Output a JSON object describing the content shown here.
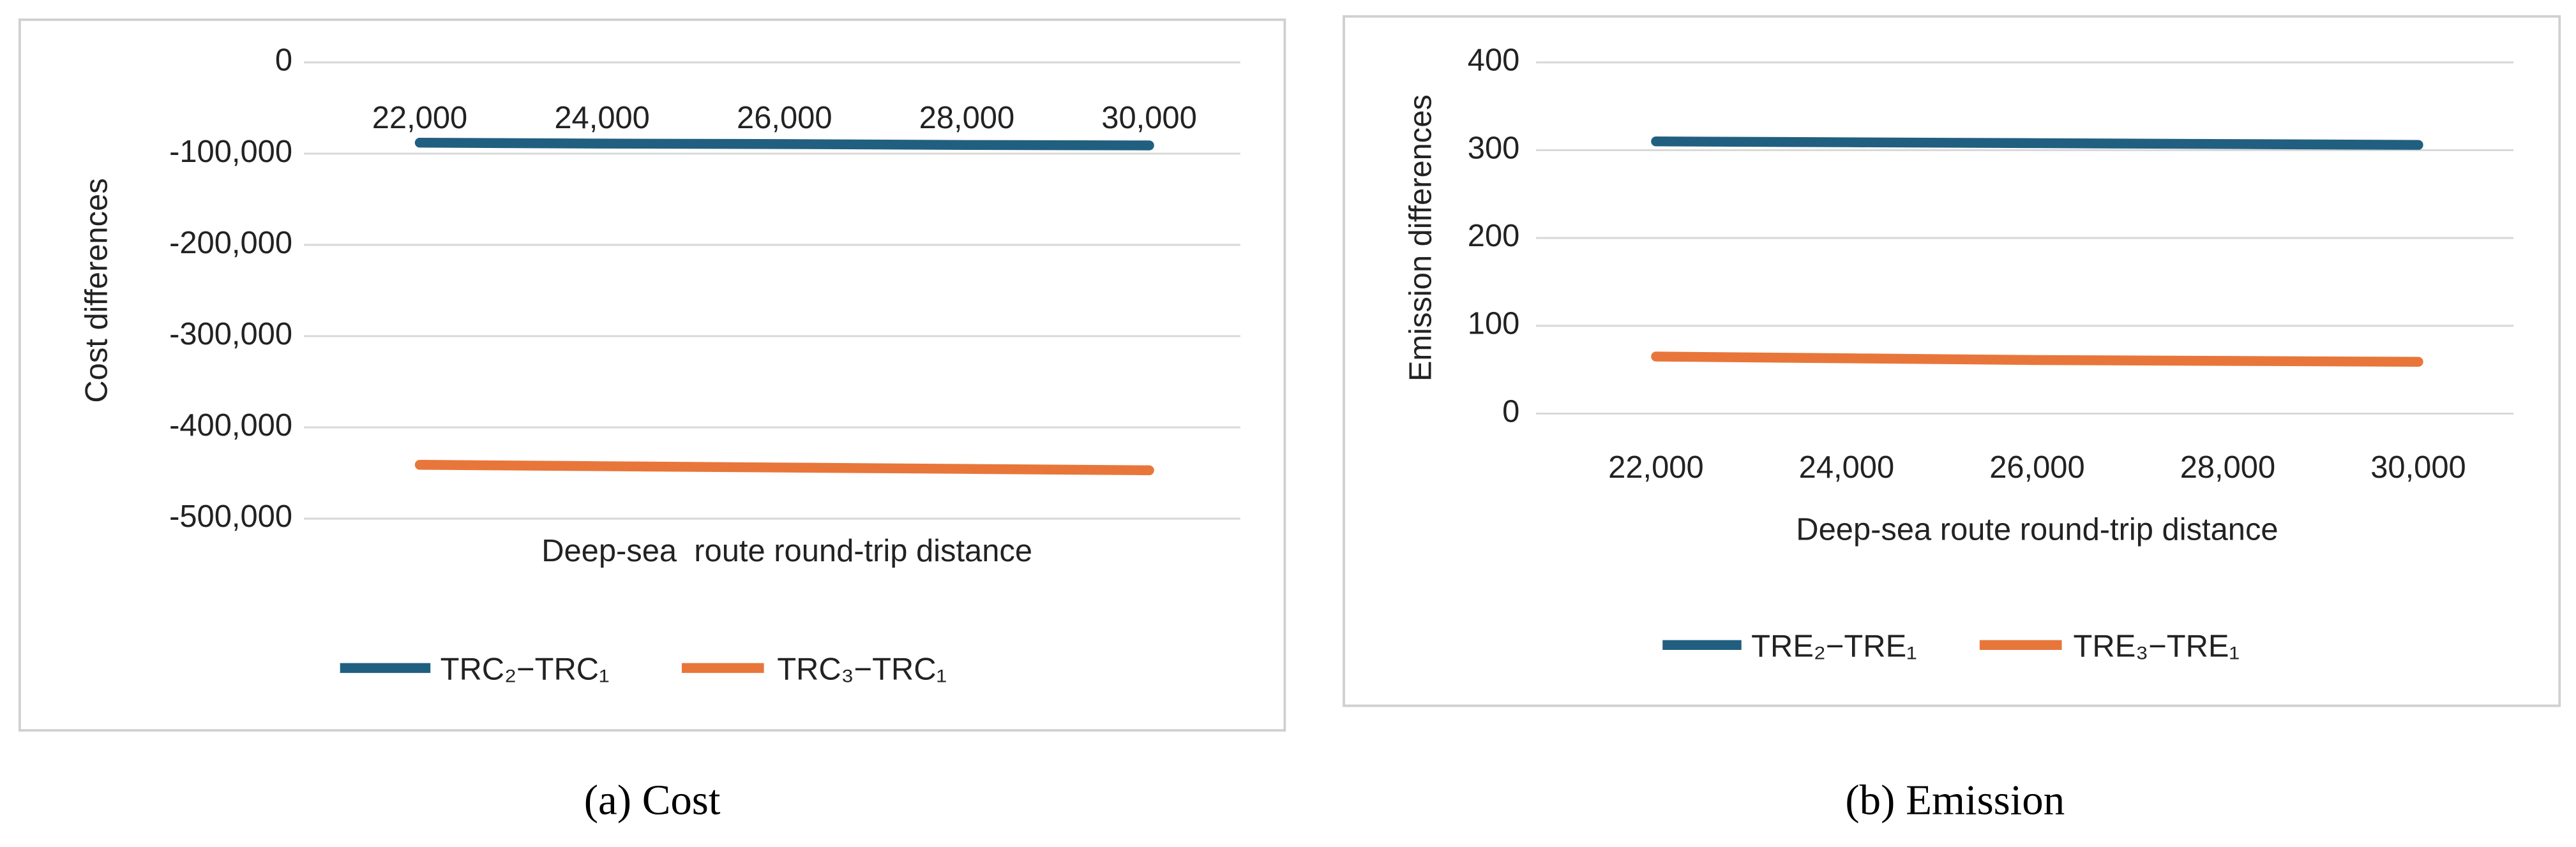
{
  "chart_data": [
    {
      "type": "line",
      "y_label": "Cost differences",
      "x_label": "Deep-sea  route round-trip distance",
      "caption": "(a) Cost",
      "categories": [
        "22,000",
        "24,000",
        "26,000",
        "28,000",
        "30,000"
      ],
      "series": [
        {
          "name": "TRC₂−TRC₁",
          "color": "#215f80",
          "values": [
            -88000,
            -89000,
            -89500,
            -90500,
            -91000
          ]
        },
        {
          "name": "TRC₃−TRC₁",
          "color": "#e8763a",
          "values": [
            -441000,
            -442500,
            -444000,
            -445500,
            -447000
          ]
        }
      ],
      "ylim": [
        -500000,
        0
      ],
      "yticks": [
        0,
        {
          "value": -100000,
          "label": "-100,000"
        },
        {
          "value": -200000,
          "label": "-200,000"
        },
        {
          "value": -300000,
          "label": "-300,000"
        },
        {
          "value": -400000,
          "label": "-400,000"
        },
        {
          "value": -500000,
          "label": "-500,000"
        }
      ],
      "grid": true,
      "legend": "bottom"
    },
    {
      "type": "line",
      "y_label": "Emission differences",
      "x_label": "Deep-sea route round-trip distance",
      "caption": "(b) Emission",
      "categories": [
        "22,000",
        "24,000",
        "26,000",
        "28,000",
        "30,000"
      ],
      "series": [
        {
          "name": "TRE₂−TRE₁",
          "color": "#215f80",
          "values": [
            310,
            309,
            308,
            307,
            306
          ]
        },
        {
          "name": "TRE₃−TRE₁",
          "color": "#e8763a",
          "values": [
            65,
            63,
            61,
            60,
            59
          ]
        }
      ],
      "ylim": [
        0,
        400
      ],
      "yticks": [
        0,
        100,
        200,
        300,
        400
      ],
      "grid": true,
      "legend": "bottom"
    }
  ]
}
